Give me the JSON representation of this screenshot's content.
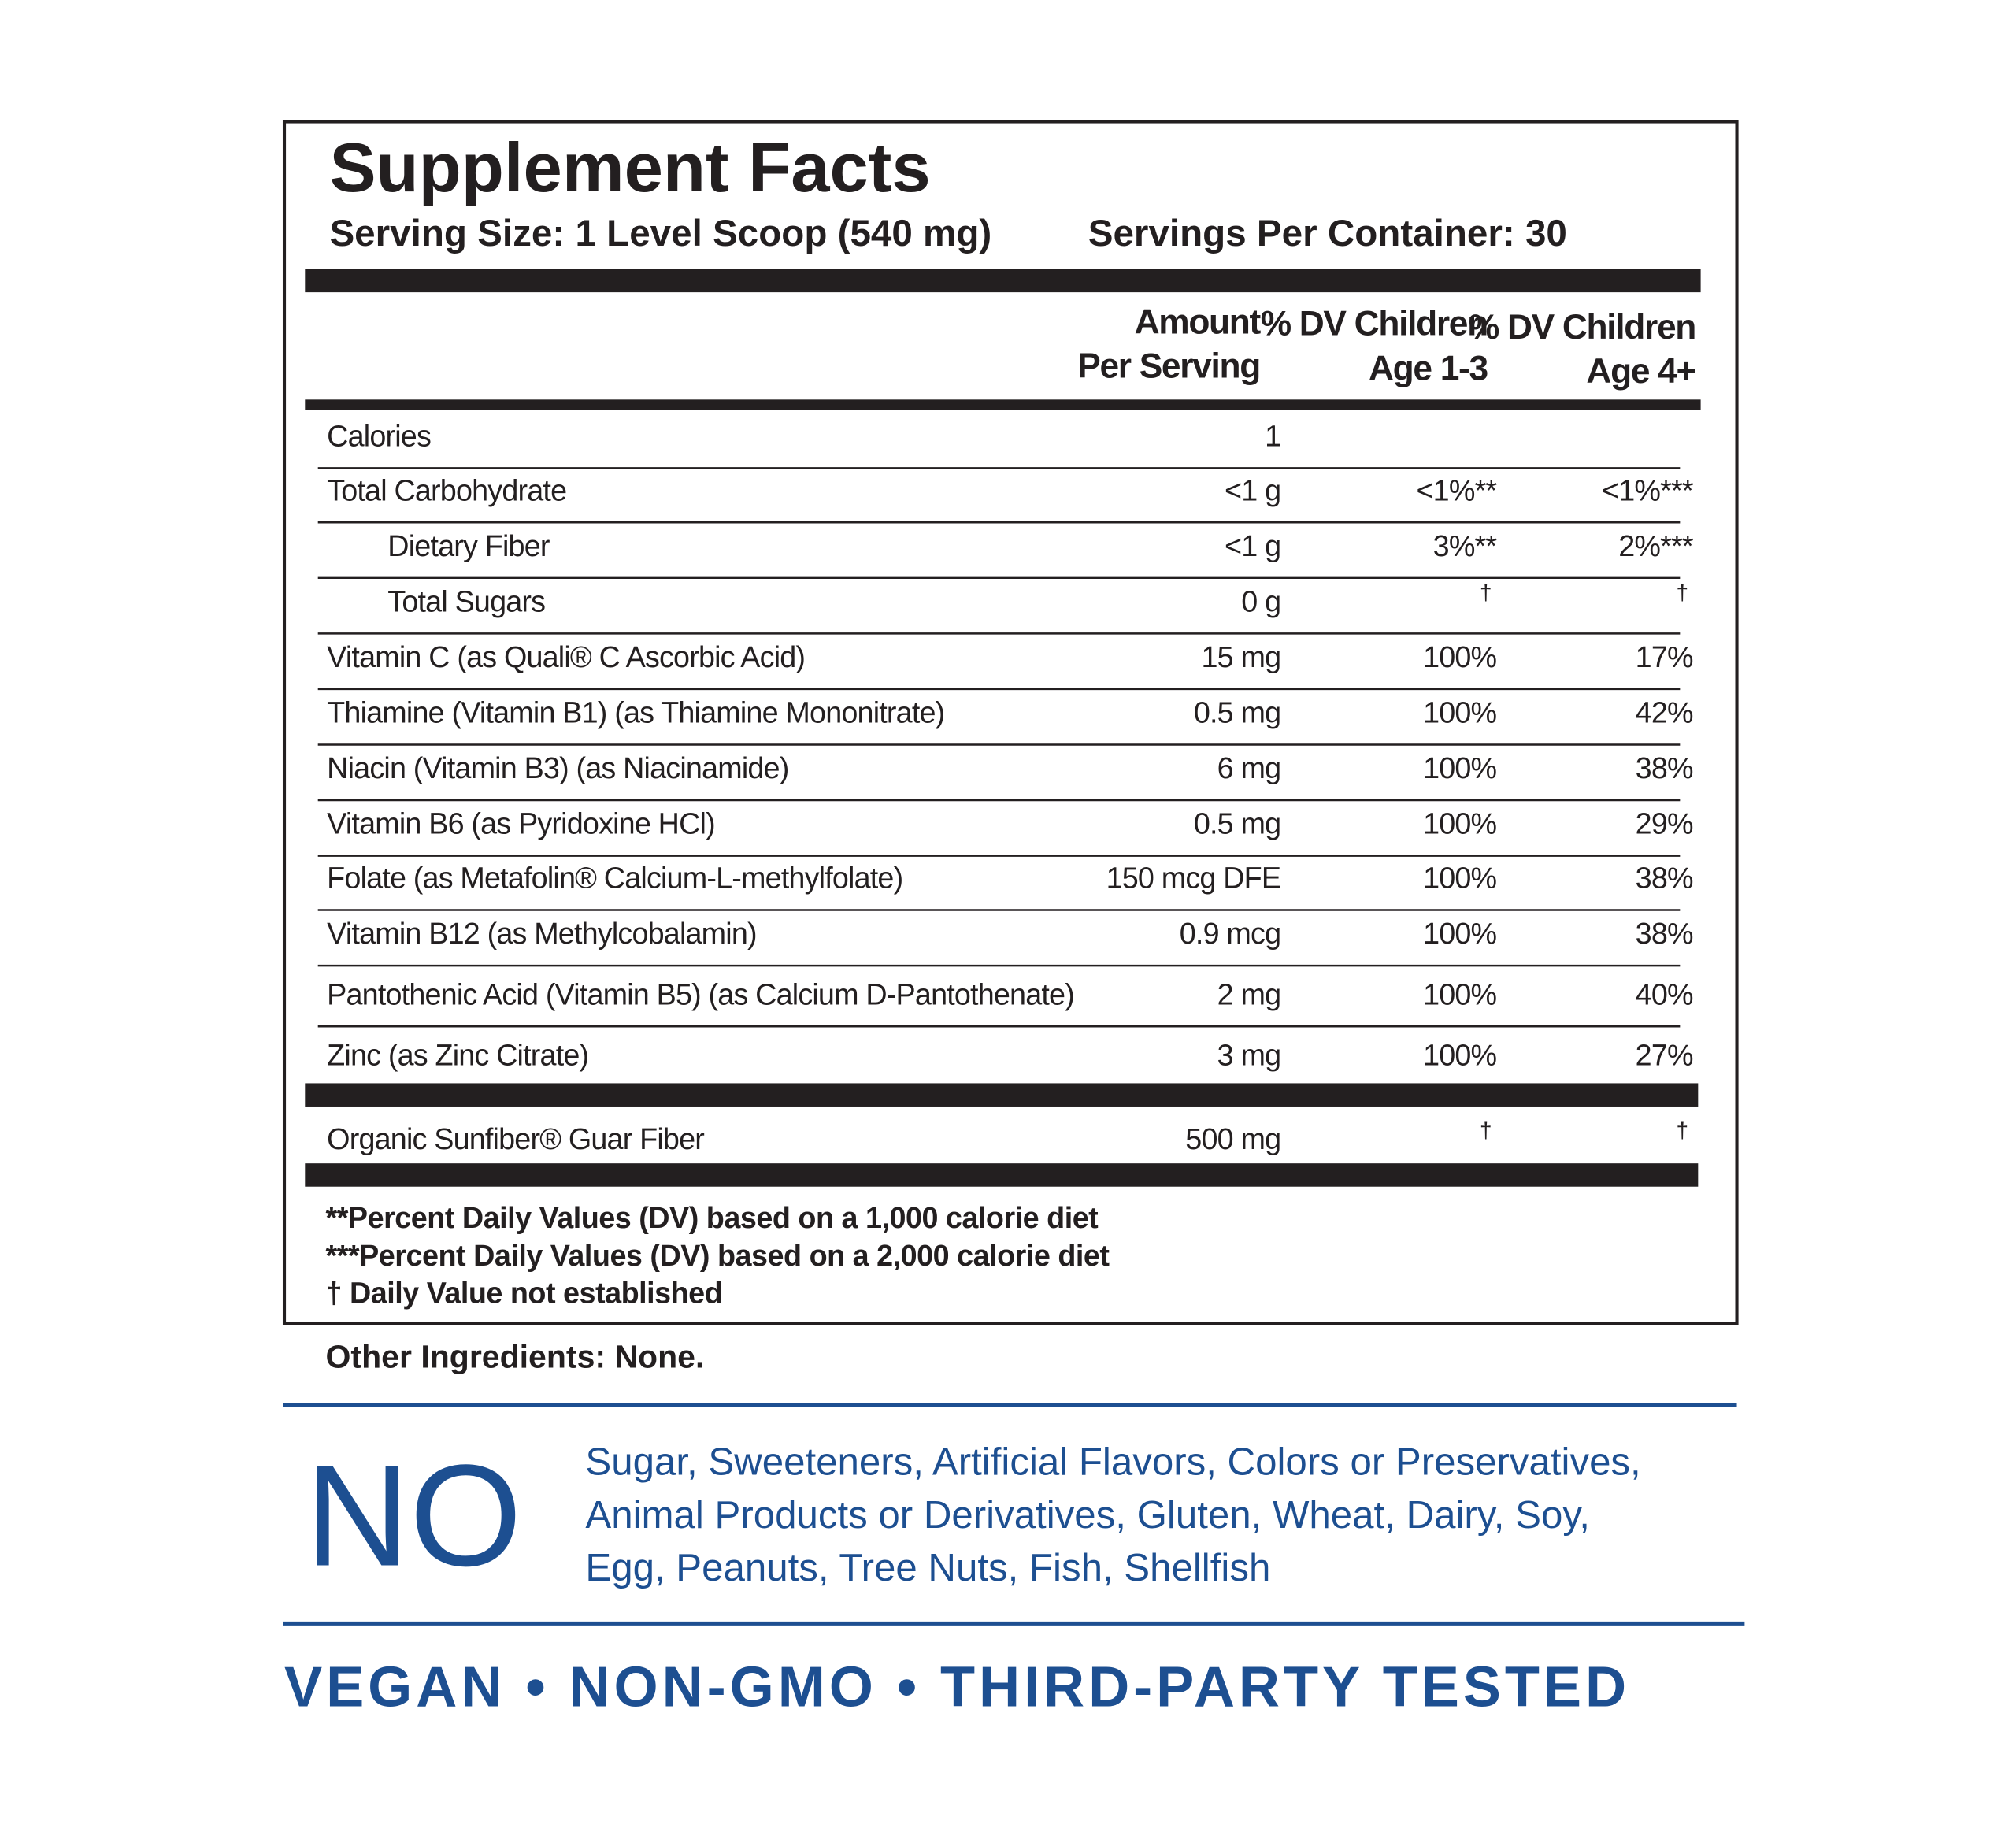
{
  "header": {
    "title": "Supplement Facts",
    "serving_size": "Serving Size: 1 Level Scoop (540 mg)",
    "servings_per_container": "Servings Per Container: 30"
  },
  "columns": [
    [
      "Amount",
      "Per Serving"
    ],
    [
      "% DV Children",
      "Age 1-3"
    ],
    [
      "% DV Children",
      "Age 4+"
    ]
  ],
  "rows": [
    {
      "label": "Calories",
      "amount": "1"
    },
    {
      "label": "Total Carbohydrate",
      "amount": "<1 g",
      "dv_1_3": "<1%**",
      "dv_4plus": "<1%***"
    },
    {
      "label": "Dietary Fiber",
      "amount": "<1 g",
      "dv_1_3": "3%**",
      "dv_4plus": "2%***",
      "indent": true
    },
    {
      "label": "Total Sugars",
      "amount": "0 g",
      "dv_1_3": "†",
      "dv_4plus": "†",
      "indent": true
    },
    {
      "label": "Vitamin C (as Quali® C  Ascorbic Acid)",
      "amount": "15 mg",
      "dv_1_3": "100%",
      "dv_4plus": "17%"
    },
    {
      "label": "Thiamine (Vitamin B1) (as Thiamine Mononitrate)",
      "amount": "0.5 mg",
      "dv_1_3": "100%",
      "dv_4plus": "42%"
    },
    {
      "label": "Niacin (Vitamin B3) (as Niacinamide)",
      "amount": "6 mg",
      "dv_1_3": "100%",
      "dv_4plus": "38%"
    },
    {
      "label": "Vitamin B6 (as Pyridoxine HCl)",
      "amount": "0.5 mg",
      "dv_1_3": "100%",
      "dv_4plus": "29%"
    },
    {
      "label": "Folate (as Metafolin® Calcium-L-methylfolate)",
      "amount": "150 mcg DFE",
      "dv_1_3": "100%",
      "dv_4plus": "38%"
    },
    {
      "label": "Vitamin B12 (as Methylcobalamin)",
      "amount": "0.9 mcg",
      "dv_1_3": "100%",
      "dv_4plus": "38%"
    },
    {
      "label": "Pantothenic Acid (Vitamin B5) (as Calcium D-Pantothenate)",
      "amount": "2 mg",
      "dv_1_3": "100%",
      "dv_4plus": "40%"
    },
    {
      "label": "Zinc (as Zinc Citrate)",
      "amount": "3 mg",
      "dv_1_3": "100%",
      "dv_4plus": "27%"
    }
  ],
  "other_rows": [
    {
      "label": "Organic Sunfiber® Guar Fiber",
      "amount": "500 mg",
      "dv_1_3": "†",
      "dv_4plus": "†"
    }
  ],
  "footnotes": [
    "**Percent Daily Values (DV) based on a 1,000 calorie diet",
    "***Percent Daily Values (DV) based on a 2,000 calorie diet",
    "† Daily Value not established"
  ],
  "other_ingredients": "Other Ingredients: None.",
  "free_from": {
    "heading": "NO",
    "lines": [
      "Sugar, Sweeteners, Artificial Flavors, Colors or Preservatives,",
      "Animal Products or Derivatives, Gluten, Wheat, Dairy, Soy,",
      "Egg, Peanuts, Tree Nuts, Fish, Shellfish"
    ]
  },
  "claims": "VEGAN • NON-GMO • THIRD-PARTY TESTED"
}
